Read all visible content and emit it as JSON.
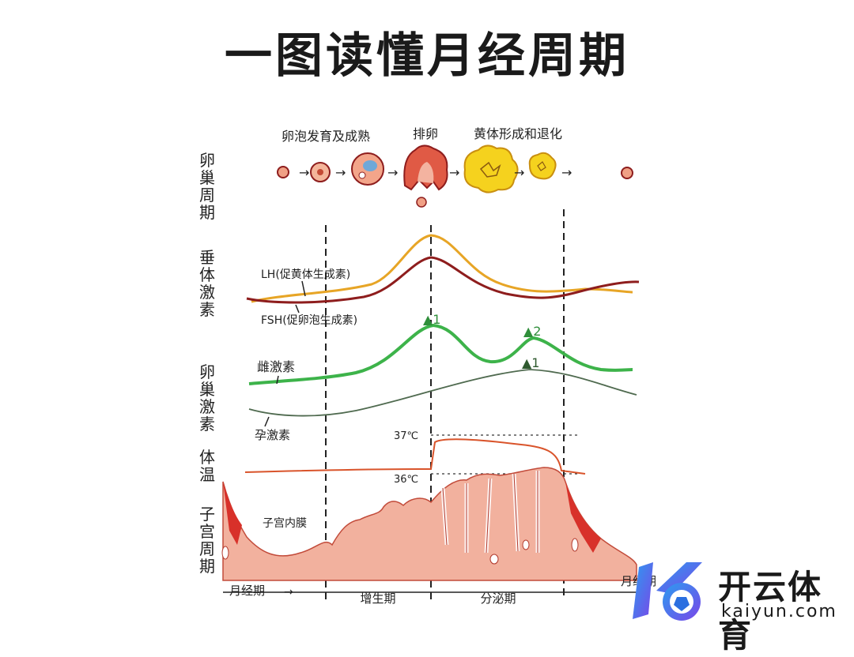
{
  "title": "一图读懂月经周期",
  "row_labels": {
    "ovary_cycle": "卵巢周期",
    "pituitary_hormones": "垂体激素",
    "ovarian_hormones": "卵巢激素",
    "body_temp": "体温",
    "uterus_cycle": "子宫周期"
  },
  "ovary_stages": {
    "follicle": "卵泡发育及成熟",
    "ovulation": "排卵",
    "corpus_luteum": "黄体形成和退化"
  },
  "hormone_labels": {
    "lh": "LH(促黄体生成素)",
    "fsh": "FSH(促卵泡生成素)",
    "estrogen": "雌激素",
    "progesterone": "孕激素"
  },
  "peak_markers": {
    "peak1": "▲1",
    "peak2": "▲2",
    "peak3": "▲1"
  },
  "temperatures": {
    "high": "37℃",
    "low": "36℃"
  },
  "endometrium_label": "子宫内膜",
  "phases": {
    "menstrual_start": "月经期",
    "proliferative": "增生期",
    "secretory": "分泌期",
    "menstrual_end": "月经期"
  },
  "watermark": {
    "cn": "开云体育",
    "en": "kaiyun.com"
  },
  "colors": {
    "lh": "#e7a526",
    "fsh": "#8e1d1d",
    "estrogen": "#3db34a",
    "progesterone": "#4f6a4f",
    "temperature": "#d9542b",
    "endometrium": "#f2b19e",
    "endometrium_dark": "#d8312a",
    "follicle_yellow": "#f5d21e"
  }
}
